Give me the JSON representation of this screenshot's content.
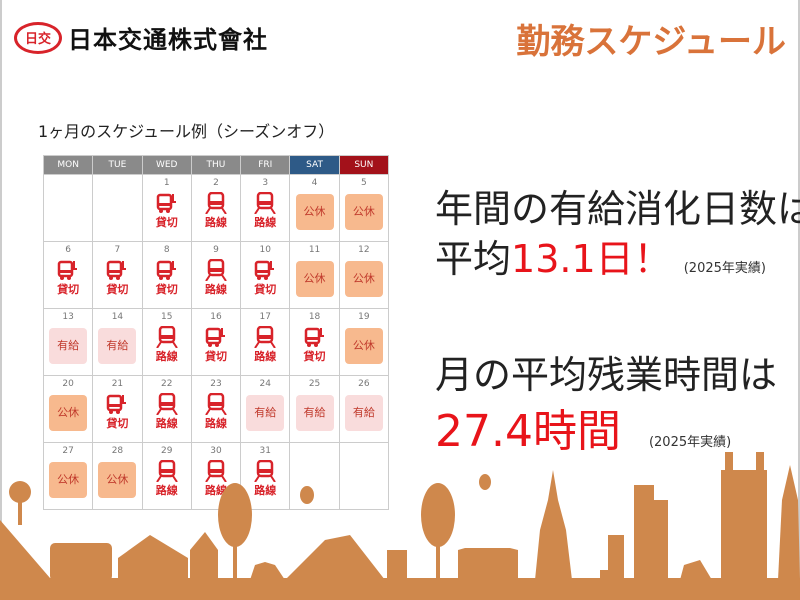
{
  "header": {
    "logo_mark": "日交",
    "company": "日本交通株式會社",
    "title": "勤務スケジュール"
  },
  "subtitle": "1ヶ月のスケジュール例（シーズンオフ）",
  "calendar": {
    "days": [
      "MON",
      "TUE",
      "WED",
      "THU",
      "FRI",
      "SAT",
      "SUN"
    ],
    "legend": {
      "charter": "貸切",
      "route": "路線",
      "off": "公休",
      "paid": "有給"
    },
    "weeks": [
      [
        null,
        null,
        {
          "d": "1",
          "t": "charter"
        },
        {
          "d": "2",
          "t": "route"
        },
        {
          "d": "3",
          "t": "route"
        },
        {
          "d": "4",
          "t": "off"
        },
        {
          "d": "5",
          "t": "off"
        }
      ],
      [
        {
          "d": "6",
          "t": "charter"
        },
        {
          "d": "7",
          "t": "charter"
        },
        {
          "d": "8",
          "t": "charter"
        },
        {
          "d": "9",
          "t": "route"
        },
        {
          "d": "10",
          "t": "charter"
        },
        {
          "d": "11",
          "t": "off"
        },
        {
          "d": "12",
          "t": "off"
        }
      ],
      [
        {
          "d": "13",
          "t": "paid"
        },
        {
          "d": "14",
          "t": "paid"
        },
        {
          "d": "15",
          "t": "route"
        },
        {
          "d": "16",
          "t": "charter"
        },
        {
          "d": "17",
          "t": "route"
        },
        {
          "d": "18",
          "t": "charter"
        },
        {
          "d": "19",
          "t": "off"
        }
      ],
      [
        {
          "d": "20",
          "t": "off"
        },
        {
          "d": "21",
          "t": "charter"
        },
        {
          "d": "22",
          "t": "route"
        },
        {
          "d": "23",
          "t": "route"
        },
        {
          "d": "24",
          "t": "paid"
        },
        {
          "d": "25",
          "t": "paid"
        },
        {
          "d": "26",
          "t": "paid"
        }
      ],
      [
        {
          "d": "27",
          "t": "off"
        },
        {
          "d": "28",
          "t": "off"
        },
        {
          "d": "29",
          "t": "route"
        },
        {
          "d": "30",
          "t": "route"
        },
        {
          "d": "31",
          "t": "route"
        },
        null,
        null
      ]
    ]
  },
  "stats": {
    "line1": "年間の有給消化日数は",
    "line2_prefix": "平均",
    "line2_value": "13.1日！",
    "line2_note": "(2025年実績)",
    "line3": "月の平均残業時間は",
    "line4_value": "27.4時間",
    "line4_note": "(2025年実績)"
  },
  "colors": {
    "accent": "#d9733a",
    "red": "#e8141a",
    "skyline": "#cf884c",
    "off": "#f7b98e",
    "paid": "#f9dcdc",
    "sat": "#2e5a87",
    "sun": "#a3111a"
  }
}
